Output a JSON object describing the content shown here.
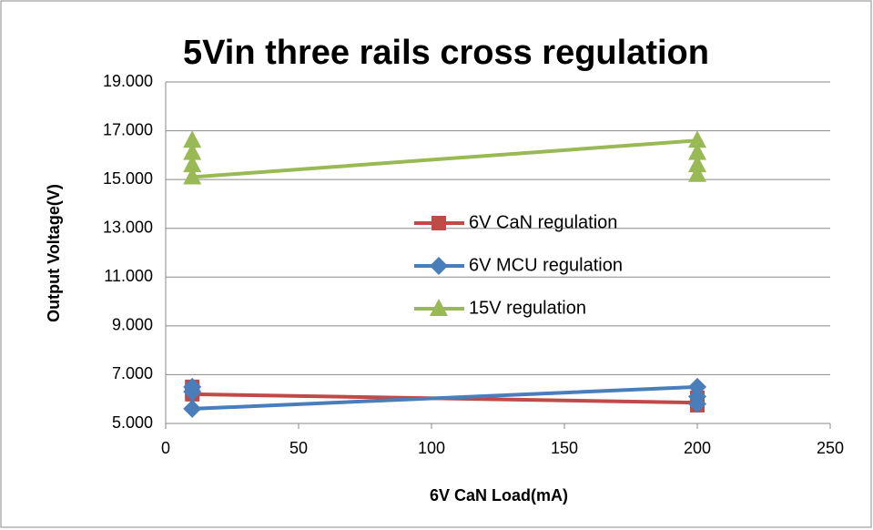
{
  "chart_data": {
    "type": "scatter",
    "title": "5Vin three rails cross regulation",
    "x_label": "6V CaN Load(mA)",
    "y_label": "Output Voltage(V)",
    "series": [
      {
        "name": "6V CaN regulation",
        "color": "#be4b48",
        "marker": "square",
        "x": [
          10,
          10,
          10,
          200,
          200,
          200
        ],
        "values": [
          6.5,
          6.35,
          6.2,
          5.85,
          6.05,
          5.75
        ]
      },
      {
        "name": "6V MCU regulation",
        "color": "#4a7ebb",
        "marker": "diamond",
        "x": [
          10,
          10,
          10,
          200,
          200,
          200
        ],
        "values": [
          6.5,
          6.3,
          5.6,
          6.5,
          6.1,
          5.8
        ]
      },
      {
        "name": "15V regulation",
        "color": "#98b954",
        "marker": "triangle",
        "x": [
          10,
          10,
          10,
          10,
          200,
          200,
          200,
          200
        ],
        "values": [
          16.6,
          16.1,
          15.6,
          15.1,
          16.6,
          16.1,
          15.6,
          15.2
        ]
      }
    ],
    "xlim": [
      0,
      250
    ],
    "xticks": [
      0,
      50,
      100,
      150,
      200,
      250
    ],
    "ylim": [
      5,
      19
    ],
    "yticks": [
      {
        "value": 5,
        "label": "5.000"
      },
      {
        "value": 7,
        "label": "7.000"
      },
      {
        "value": 9,
        "label": "9.000"
      },
      {
        "value": 11,
        "label": "11.000"
      },
      {
        "value": 13,
        "label": "13.000"
      },
      {
        "value": 15,
        "label": "15.000"
      },
      {
        "value": 17,
        "label": "17.000"
      },
      {
        "value": 19,
        "label": "19.000"
      }
    ],
    "grid": true
  }
}
